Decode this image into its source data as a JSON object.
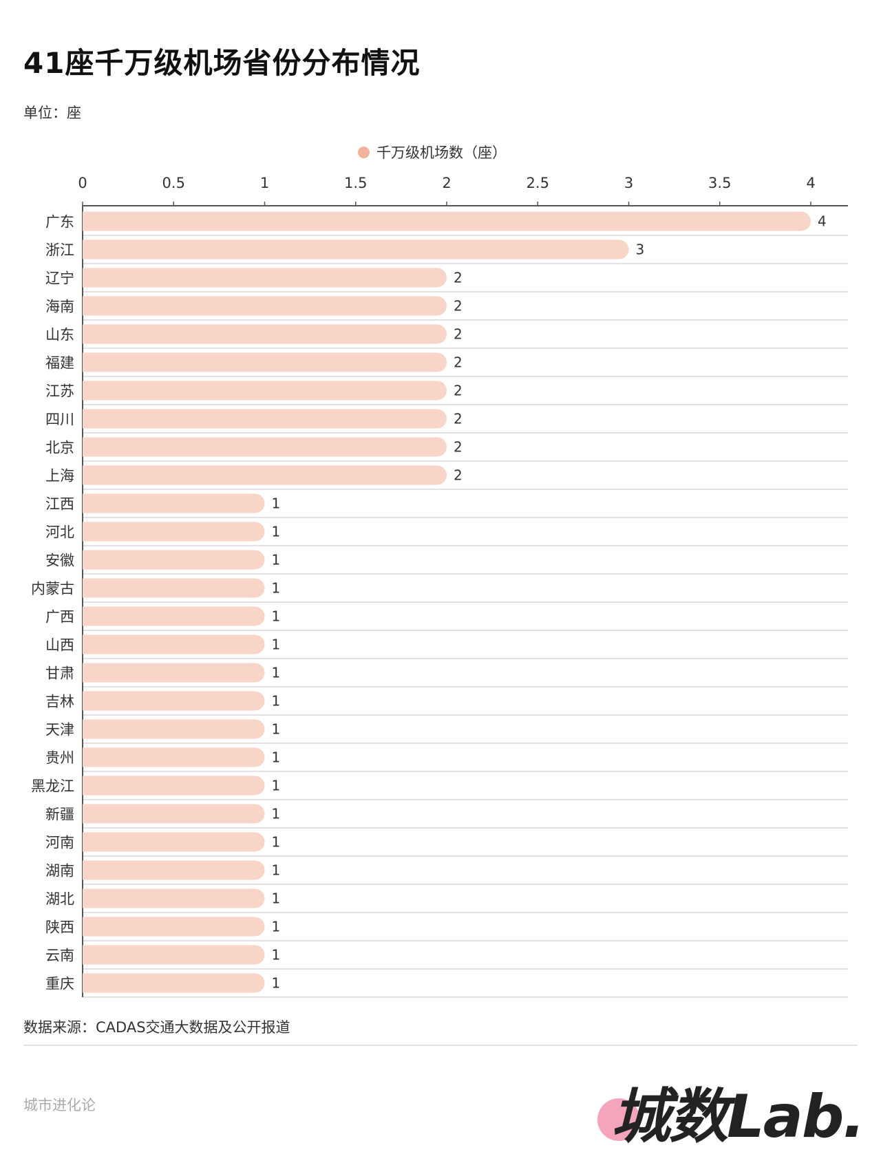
{
  "title": "41座千万级机场省份分布情况",
  "unit": "单位：座",
  "source": "数据来源：CADAS交通大数据及公开报道",
  "brand": "城市进化论",
  "logo": "城数Lab.",
  "colors": {
    "bar": "#f8d5c6",
    "legend_dot": "#f0b49a",
    "grid": "#e2e2e2",
    "axis": "#555555"
  },
  "chart_data": {
    "type": "bar",
    "orientation": "horizontal",
    "title": "41座千万级机场省份分布情况",
    "legend": [
      "千万级机场数（座）"
    ],
    "legend_position": "top-center",
    "xlim": [
      0,
      4.2
    ],
    "xticks": [
      "0",
      "0.5",
      "1",
      "1.5",
      "2",
      "2.5",
      "3",
      "3.5",
      "4"
    ],
    "xtick_values": [
      0,
      0.5,
      1,
      1.5,
      2,
      2.5,
      3,
      3.5,
      4
    ],
    "categories": [
      "广东",
      "浙江",
      "辽宁",
      "海南",
      "山东",
      "福建",
      "江苏",
      "四川",
      "北京",
      "上海",
      "江西",
      "河北",
      "安徽",
      "内蒙古",
      "广西",
      "山西",
      "甘肃",
      "吉林",
      "天津",
      "贵州",
      "黑龙江",
      "新疆",
      "河南",
      "湖南",
      "湖北",
      "陕西",
      "云南",
      "重庆"
    ],
    "values": [
      4,
      3,
      2,
      2,
      2,
      2,
      2,
      2,
      2,
      2,
      1,
      1,
      1,
      1,
      1,
      1,
      1,
      1,
      1,
      1,
      1,
      1,
      1,
      1,
      1,
      1,
      1,
      1
    ]
  }
}
